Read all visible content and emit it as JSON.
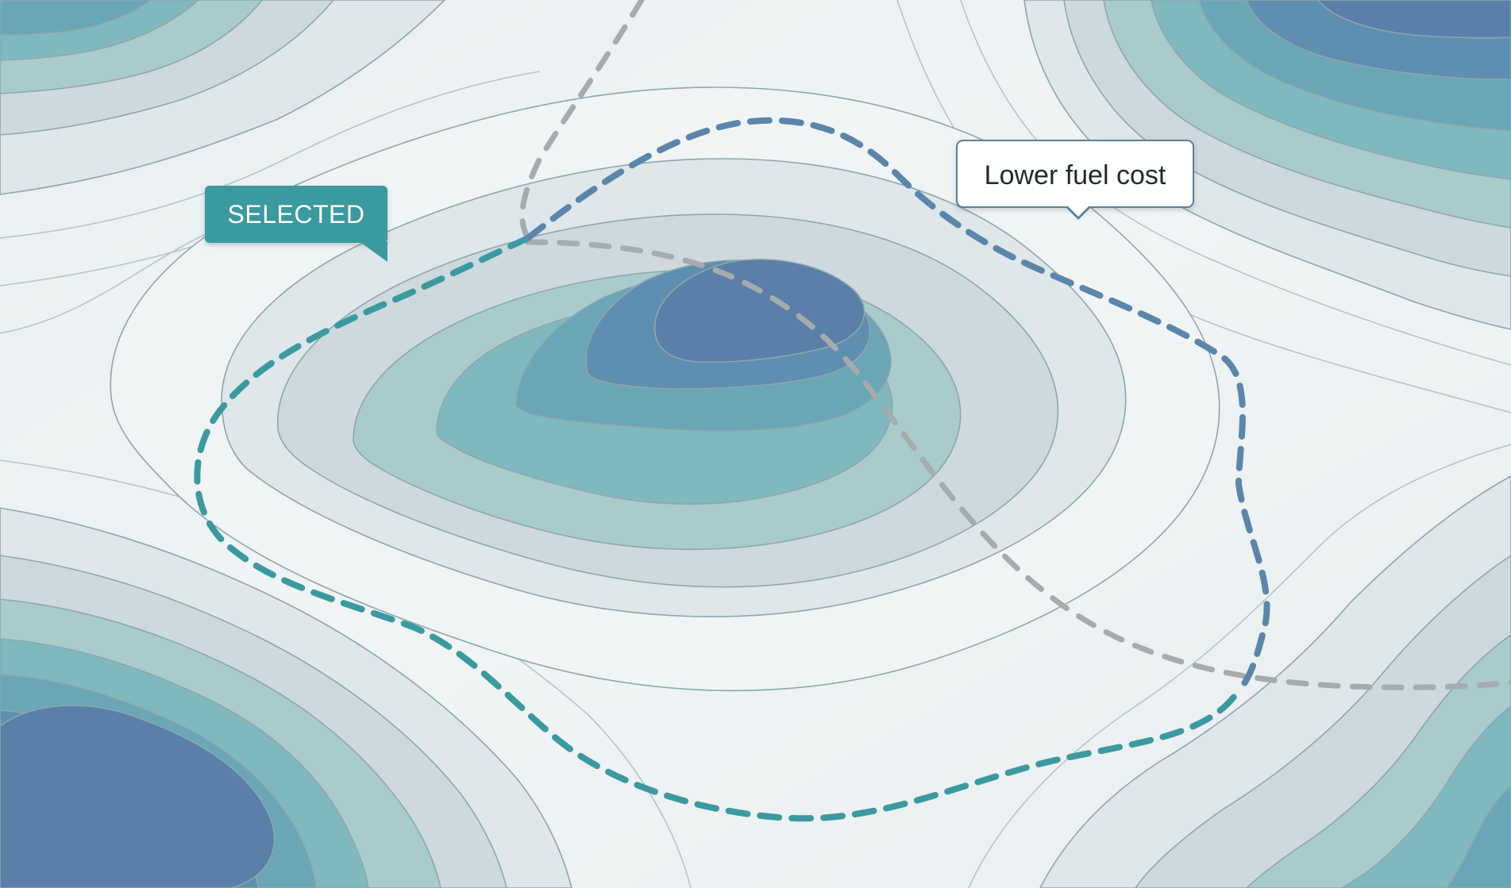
{
  "map": {
    "selected_label": "SELECTED",
    "tooltip_label": "Lower fuel cost",
    "colors": {
      "background": "#eef2f4",
      "contour_line": "#8ea6ae",
      "band_1": "#dfe7ea",
      "band_2": "#cdd9dd",
      "band_3": "#a9cbcc",
      "band_4": "#80b9bd",
      "band_5": "#6aa6b5",
      "band_6": "#5f8fb0",
      "band_7": "#5a7fa8",
      "selected_route": "#3a9aa0",
      "selected_route_alt": "#5b86ab",
      "alternate_route": "#a6abae",
      "tooltip_border": "#5f7f99"
    },
    "icons": {
      "selected_tag_pointer": "triangle-pointer",
      "tooltip_pointer": "triangle-pointer"
    }
  }
}
